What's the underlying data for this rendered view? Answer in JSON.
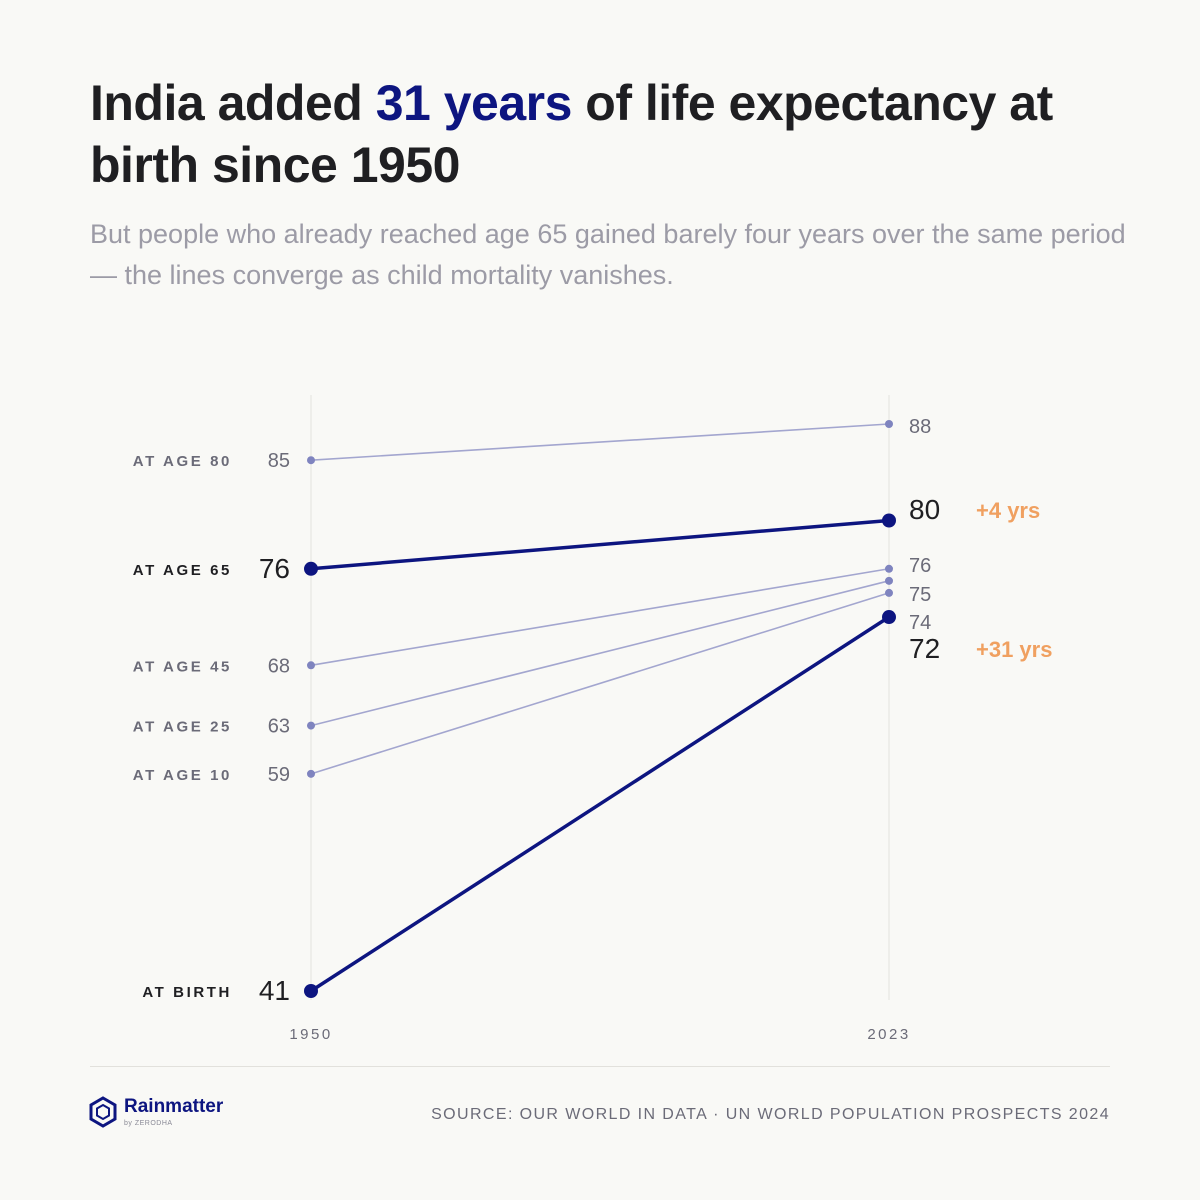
{
  "title": {
    "before": "India added ",
    "highlight": "31 years",
    "after": " of life expectancy at birth since 1950"
  },
  "subtitle": "But people who already reached age 65 gained barely four years over the same period — the lines converge as child mortality vanishes.",
  "colors": {
    "accent": "#0d1580",
    "muted_line": "#a3a6cf",
    "muted_dot": "#7f84bf",
    "delta": "#f0a060",
    "text": "#1f1f22",
    "label": "#6b6b78"
  },
  "chart_data": {
    "type": "line",
    "x": [
      "1950",
      "2023"
    ],
    "ylim": [
      41,
      88
    ],
    "series": [
      {
        "name": "AT AGE 80",
        "values": [
          85,
          88
        ],
        "emphasis": false
      },
      {
        "name": "AT AGE 65",
        "values": [
          76,
          80
        ],
        "emphasis": true,
        "delta": "+4 yrs"
      },
      {
        "name": "AT AGE 45",
        "values": [
          68,
          76
        ],
        "emphasis": false
      },
      {
        "name": "AT AGE 25",
        "values": [
          63,
          75
        ],
        "emphasis": false
      },
      {
        "name": "AT AGE 10",
        "values": [
          59,
          74
        ],
        "emphasis": false
      },
      {
        "name": "AT BIRTH",
        "values": [
          41,
          72
        ],
        "emphasis": true,
        "delta": "+31 yrs"
      }
    ]
  },
  "brand": {
    "name": "Rainmatter",
    "sub": "by ZERODHA"
  },
  "source": "SOURCE: OUR WORLD IN DATA · UN WORLD POPULATION PROSPECTS 2024"
}
